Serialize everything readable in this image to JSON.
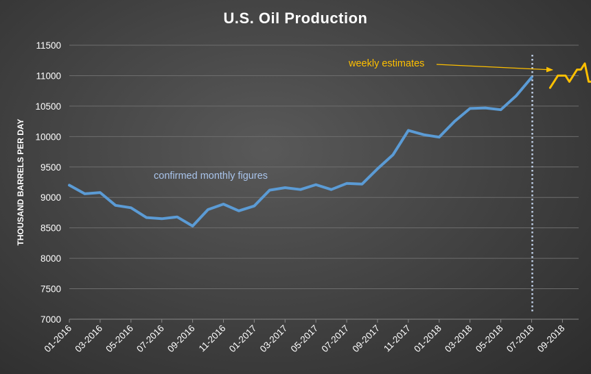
{
  "chart_data": {
    "type": "line",
    "title": "U.S. Oil Production",
    "ylabel": "THOUSAND BARRELS PER DAY",
    "xlabel": "",
    "ylim": [
      7000,
      11500
    ],
    "yticks": [
      7000,
      7500,
      8000,
      8500,
      9000,
      9500,
      10000,
      10500,
      11000,
      11500
    ],
    "grid": true,
    "xticks": [
      "01-2016",
      "03-2016",
      "05-2016",
      "07-2016",
      "09-2016",
      "11-2016",
      "01-2017",
      "03-2017",
      "05-2017",
      "07-2017",
      "09-2017",
      "11-2017",
      "01-2018",
      "03-2018",
      "05-2018",
      "07-2018",
      "09-2018"
    ],
    "series": [
      {
        "name": "confirmed monthly figures",
        "color": "#5b9bd5",
        "x": [
          "01-2016",
          "02-2016",
          "03-2016",
          "04-2016",
          "05-2016",
          "06-2016",
          "07-2016",
          "08-2016",
          "09-2016",
          "10-2016",
          "11-2016",
          "12-2016",
          "01-2017",
          "02-2017",
          "03-2017",
          "04-2017",
          "05-2017",
          "06-2017",
          "07-2017",
          "08-2017",
          "09-2017",
          "10-2017",
          "11-2017",
          "12-2017",
          "01-2018",
          "02-2018",
          "03-2018",
          "04-2018",
          "05-2018",
          "06-2018",
          "07-2018"
        ],
        "values": [
          9200,
          9060,
          9080,
          8870,
          8830,
          8670,
          8650,
          8680,
          8530,
          8800,
          8890,
          8780,
          8860,
          9120,
          9160,
          9130,
          9210,
          9130,
          9230,
          9220,
          9470,
          9700,
          10100,
          10030,
          9990,
          10250,
          10460,
          10470,
          10440,
          10670,
          10970
        ]
      },
      {
        "name": "weekly estimates",
        "color": "#ffc000",
        "x_index": [
          31.0,
          31.25,
          31.5,
          31.75,
          32.0,
          32.25,
          32.5,
          32.75,
          33.0,
          33.25,
          33.5,
          33.75,
          34.0
        ],
        "values": [
          10800,
          10900,
          11000,
          11000,
          11000,
          10900,
          11000,
          11100,
          11100,
          11200,
          10900,
          10900,
          10900
        ]
      }
    ],
    "annotations": [
      {
        "text": "confirmed monthly figures",
        "color": "#a9c4eb"
      },
      {
        "text": "weekly estimates",
        "color": "#ffc000"
      }
    ],
    "divider_after": "07-2018",
    "colors": {
      "grid": "#6e6e6e",
      "divider": "#c0d0e8"
    }
  }
}
